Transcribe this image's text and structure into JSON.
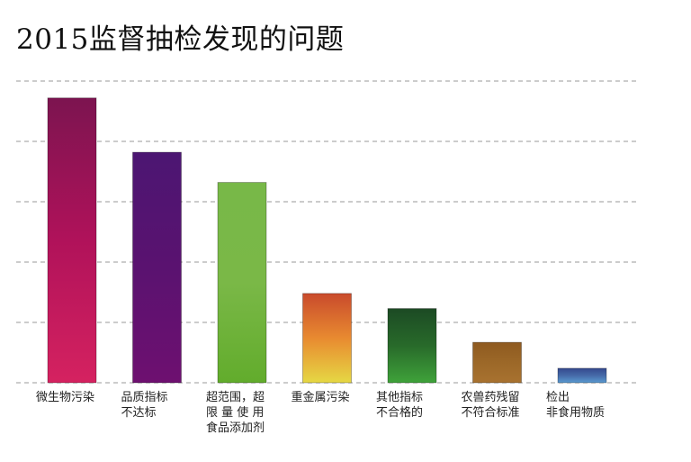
{
  "title": "2015监督抽检发现的问题",
  "chart_data": {
    "type": "bar",
    "title": "2015监督抽检发现的问题",
    "xlabel": "",
    "ylabel": "",
    "ylim": [
      0,
      5
    ],
    "grid": true,
    "categories": [
      "微生物污染",
      "品质指标\n不达标",
      "超范围，超\n限 量 使 用\n食品添加剂",
      "重金属污染",
      "其他指标\n不合格的",
      "农兽药残留\n不符合标准",
      "检出\n非食用物质"
    ],
    "values": [
      4.72,
      3.82,
      3.32,
      1.48,
      1.23,
      0.67,
      0.24
    ],
    "colors": [
      [
        "#7c1450",
        "#b0125a",
        "#d52260"
      ],
      [
        "#4c1672",
        "#5a1270",
        "#6e1070"
      ],
      [
        "#78b848",
        "#7ab847",
        "#62ac2c"
      ],
      [
        "#c94a2c",
        "#e88a30",
        "#e6d844"
      ],
      [
        "#1c4a24",
        "#286a2a",
        "#3fa23a"
      ],
      [
        "#8e5a20",
        "#9c6828",
        "#a87230"
      ],
      [
        "#34488e",
        "#466aa8",
        "#5a9ad0"
      ]
    ]
  }
}
